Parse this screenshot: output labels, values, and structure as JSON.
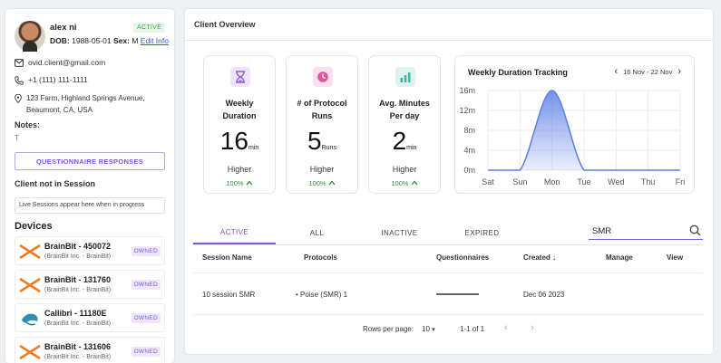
{
  "profile": {
    "name": "alex ni",
    "status": "ACTIVE",
    "dob_label": "DOB:",
    "dob": "1988-05-01",
    "sex_label": "Sex:",
    "sex": "M",
    "edit_label": "Edit Info",
    "email": "ovid.client@gmail.com",
    "phone": "+1 (111) 111-1111",
    "address_line1": "123 Farm, Highland Springs Avenue,",
    "address_line2": "Beaumont, CA, USA",
    "notes_title": "Notes:",
    "notes": "T",
    "questionnaire_button": "QUESTIONNAIRE RESPONSES",
    "session_title": "Client not in Session",
    "session_note": "Live Sessions appear here when in progress"
  },
  "devices": {
    "title": "Devices",
    "items": [
      {
        "name": "BrainBit - 450072",
        "sub": "(BrainBit Inc. - BrainBit)",
        "badge": "OWNED",
        "icon": "brainbit-logo-icon"
      },
      {
        "name": "BrainBit - 131760",
        "sub": "(BrainBit Inc. - BrainBit)",
        "badge": "OWNED",
        "icon": "brainbit-logo-icon"
      },
      {
        "name": "Callibri - 11180E",
        "sub": "(BrainBit Inc. - BrainBit)",
        "badge": "OWNED",
        "icon": "callibri-logo-icon"
      },
      {
        "name": "BrainBit - 131606",
        "sub": "(BrainBit Inc. - BrainBit)",
        "badge": "OWNED",
        "icon": "brainbit-logo-icon"
      }
    ]
  },
  "overview": {
    "title": "Client Overview",
    "stats": [
      {
        "label1": "Weekly",
        "label2": "Duration",
        "value": "16",
        "unit": "min",
        "trend": "Higher",
        "pct": "100%",
        "icon": "hourglass-icon",
        "color": "#8e5bd8",
        "bg": "#eee4fb"
      },
      {
        "label1": "# of Protocol",
        "label2": "Runs",
        "value": "5",
        "unit": "Runs",
        "trend": "Higher",
        "pct": "100%",
        "icon": "clock-icon",
        "color": "#e0569b",
        "bg": "#fbe0ee"
      },
      {
        "label1": "Avg. Minutes",
        "label2": "Per day",
        "value": "2",
        "unit": "min",
        "trend": "Higher",
        "pct": "100%",
        "icon": "bar-chart-icon",
        "color": "#3fb7a4",
        "bg": "#ddf3ee"
      }
    ]
  },
  "chart_data": {
    "type": "area",
    "title": "Weekly Duration Tracking",
    "date_range": "16 Nov - 22 Nov",
    "categories": [
      "Sat",
      "Sun",
      "Mon",
      "Tue",
      "Wed",
      "Thu",
      "Fri"
    ],
    "values": [
      0,
      0,
      16,
      0,
      0,
      0,
      0
    ],
    "y_ticks": [
      "16m",
      "12m",
      "8m",
      "4m",
      "0m"
    ],
    "ylim": [
      0,
      16
    ],
    "xlabel": "",
    "ylabel": "",
    "color": "#5b7fe6"
  },
  "tabs": [
    "ACTIVE",
    "ALL",
    "INACTIVE",
    "EXPIRED"
  ],
  "search": {
    "value": "SMR"
  },
  "table": {
    "headers": {
      "name": "Session Name",
      "protocols": "Protocols",
      "questionnaires": "Questionnaires",
      "created": "Created",
      "manage": "Manage",
      "view": "View"
    },
    "rows": [
      {
        "name": "10 session SMR",
        "protocol": "Poise (SMR) 1",
        "created": "Dec 06 2023"
      }
    ]
  },
  "pagination": {
    "rows_label": "Rows per page:",
    "rows_value": "10",
    "range": "1-1 of 1"
  }
}
